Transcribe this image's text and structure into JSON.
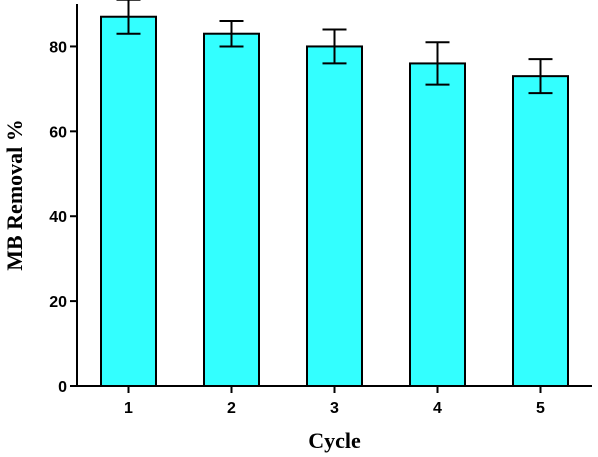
{
  "chart_data": {
    "type": "bar",
    "title": "",
    "xlabel": "Cycle",
    "ylabel": "MB Removal %",
    "categories": [
      "1",
      "2",
      "3",
      "4",
      "5"
    ],
    "values": [
      87,
      83,
      80,
      76,
      73
    ],
    "errors": [
      4,
      3,
      4,
      5,
      4
    ],
    "ylim": [
      0,
      90
    ],
    "yticks": [
      0,
      20,
      40,
      60,
      80
    ],
    "yticks_labels": [
      "0",
      "20",
      "40",
      "60",
      "80"
    ],
    "grid": false,
    "legend": "none",
    "colors": {
      "bar_fill": "#33ffff",
      "bar_stroke": "#000000",
      "axis": "#000000"
    }
  }
}
